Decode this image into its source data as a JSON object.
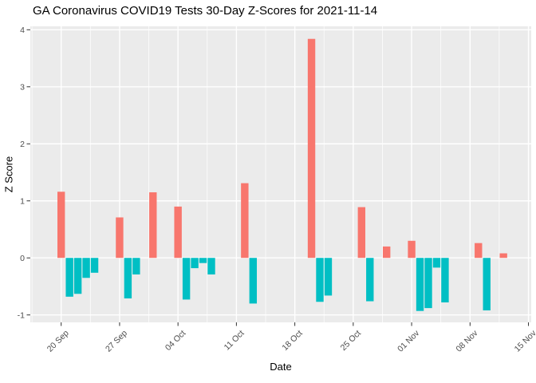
{
  "figure": {
    "background": "#FFFFFF"
  },
  "chart_data": {
    "type": "bar",
    "title": "GA Coronavirus COVID19 Tests 30-Day Z-Scores for 2021-11-14",
    "xlabel": "Date",
    "ylabel": "Z Score",
    "ylim": [
      -1.13,
      4.06
    ],
    "yticks": [
      -1,
      0,
      1,
      2,
      3,
      4
    ],
    "x_axis": {
      "first_tick": "2021-09-20",
      "tick_interval_days": 7,
      "ticks": [
        {
          "date": "2021-09-20",
          "label": "20 Sep"
        },
        {
          "date": "2021-09-27",
          "label": "27 Sep"
        },
        {
          "date": "2021-10-04",
          "label": "04 Oct"
        },
        {
          "date": "2021-10-11",
          "label": "11 Oct"
        },
        {
          "date": "2021-10-18",
          "label": "18 Oct"
        },
        {
          "date": "2021-10-25",
          "label": "25 Oct"
        },
        {
          "date": "2021-11-01",
          "label": "01 Nov"
        },
        {
          "date": "2021-11-08",
          "label": "08 Nov"
        },
        {
          "date": "2021-11-15",
          "label": "15 Nov"
        }
      ]
    },
    "grid": {
      "major": true,
      "minor": true
    },
    "legend": "none",
    "colors": {
      "positive_bar": "#F8766D",
      "negative_bar": "#00BFC4",
      "panel_background": "#EBEBEB",
      "gridline": "#FFFFFF",
      "tick_text": "#4D4D4D",
      "tick_mark": "#333333",
      "title_text": "#000000"
    },
    "series": [
      {
        "date": "2021-09-20",
        "value": 1.16
      },
      {
        "date": "2021-09-21",
        "value": -0.68
      },
      {
        "date": "2021-09-22",
        "value": -0.63
      },
      {
        "date": "2021-09-23",
        "value": -0.35
      },
      {
        "date": "2021-09-24",
        "value": -0.26
      },
      {
        "date": "2021-09-27",
        "value": 0.71
      },
      {
        "date": "2021-09-28",
        "value": -0.71
      },
      {
        "date": "2021-09-29",
        "value": -0.29
      },
      {
        "date": "2021-10-01",
        "value": 1.15
      },
      {
        "date": "2021-10-04",
        "value": 0.9
      },
      {
        "date": "2021-10-05",
        "value": -0.73
      },
      {
        "date": "2021-10-06",
        "value": -0.18
      },
      {
        "date": "2021-10-07",
        "value": -0.09
      },
      {
        "date": "2021-10-08",
        "value": -0.29
      },
      {
        "date": "2021-10-12",
        "value": 1.31
      },
      {
        "date": "2021-10-13",
        "value": -0.8
      },
      {
        "date": "2021-10-20",
        "value": 3.84
      },
      {
        "date": "2021-10-21",
        "value": -0.77
      },
      {
        "date": "2021-10-22",
        "value": -0.66
      },
      {
        "date": "2021-10-26",
        "value": 0.89
      },
      {
        "date": "2021-10-27",
        "value": -0.76
      },
      {
        "date": "2021-10-29",
        "value": 0.2
      },
      {
        "date": "2021-11-01",
        "value": 0.3
      },
      {
        "date": "2021-11-02",
        "value": -0.93
      },
      {
        "date": "2021-11-03",
        "value": -0.88
      },
      {
        "date": "2021-11-04",
        "value": -0.17
      },
      {
        "date": "2021-11-05",
        "value": -0.78
      },
      {
        "date": "2021-11-09",
        "value": 0.26
      },
      {
        "date": "2021-11-10",
        "value": -0.92
      },
      {
        "date": "2021-11-12",
        "value": 0.08
      }
    ]
  }
}
